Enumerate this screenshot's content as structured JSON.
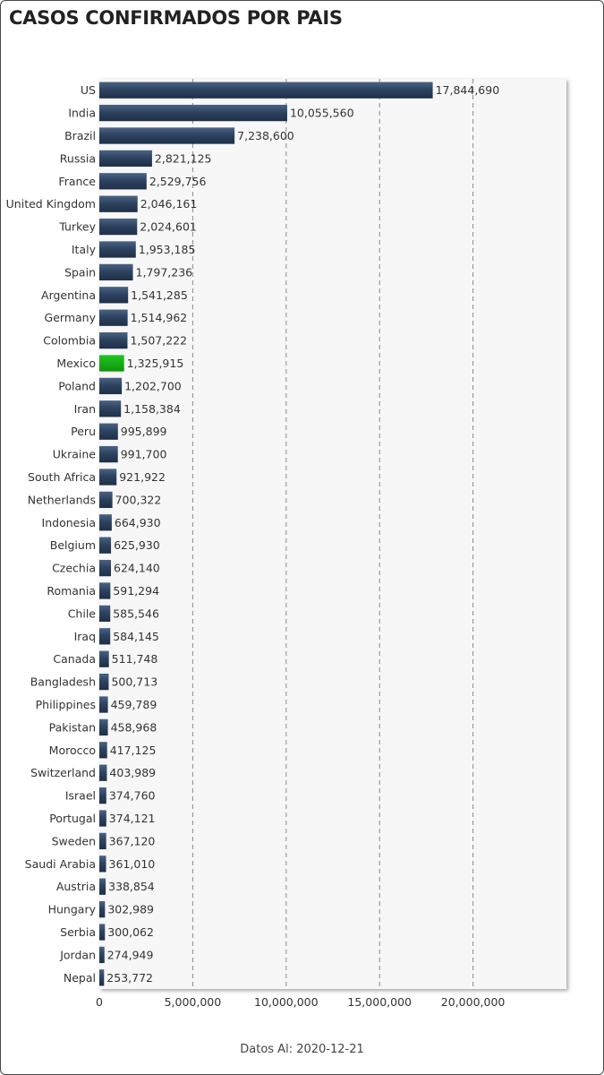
{
  "chart_data": {
    "type": "bar",
    "orientation": "horizontal",
    "title": "CASOS CONFIRMADOS POR PAIS",
    "footer": "Datos Al: 2020-12-21",
    "xlim": [
      0,
      25000000
    ],
    "xticks": [
      0,
      5000000,
      10000000,
      15000000,
      20000000
    ],
    "xtick_labels": [
      "0",
      "5,000,000",
      "10,000,000",
      "15,000,000",
      "20,000,000"
    ],
    "bar_color": "#2e4360",
    "highlight_color": "#11a811",
    "highlight_category": "Mexico",
    "categories": [
      "US",
      "India",
      "Brazil",
      "Russia",
      "France",
      "United Kingdom",
      "Turkey",
      "Italy",
      "Spain",
      "Argentina",
      "Germany",
      "Colombia",
      "Mexico",
      "Poland",
      "Iran",
      "Peru",
      "Ukraine",
      "South Africa",
      "Netherlands",
      "Indonesia",
      "Belgium",
      "Czechia",
      "Romania",
      "Chile",
      "Iraq",
      "Canada",
      "Bangladesh",
      "Philippines",
      "Pakistan",
      "Morocco",
      "Switzerland",
      "Israel",
      "Portugal",
      "Sweden",
      "Saudi Arabia",
      "Austria",
      "Hungary",
      "Serbia",
      "Jordan",
      "Nepal"
    ],
    "values": [
      17844690,
      10055560,
      7238600,
      2821125,
      2529756,
      2046161,
      2024601,
      1953185,
      1797236,
      1541285,
      1514962,
      1507222,
      1325915,
      1202700,
      1158384,
      995899,
      991700,
      921922,
      700322,
      664930,
      625930,
      624140,
      591294,
      585546,
      584145,
      511748,
      500713,
      459789,
      458968,
      417125,
      403989,
      374760,
      374121,
      367120,
      361010,
      338854,
      302989,
      300062,
      274949,
      253772
    ],
    "value_labels": [
      "17,844,690",
      "10,055,560",
      "7,238,600",
      "2,821,125",
      "2,529,756",
      "2,046,161",
      "2,024,601",
      "1,953,185",
      "1,797,236",
      "1,541,285",
      "1,514,962",
      "1,507,222",
      "1,325,915",
      "1,202,700",
      "1,158,384",
      "995,899",
      "991,700",
      "921,922",
      "700,322",
      "664,930",
      "625,930",
      "624,140",
      "591,294",
      "585,546",
      "584,145",
      "511,748",
      "500,713",
      "459,789",
      "458,968",
      "417,125",
      "403,989",
      "374,760",
      "374,121",
      "367,120",
      "361,010",
      "338,854",
      "302,989",
      "300,062",
      "274,949",
      "253,772"
    ],
    "grid": "vertical-dashed"
  }
}
